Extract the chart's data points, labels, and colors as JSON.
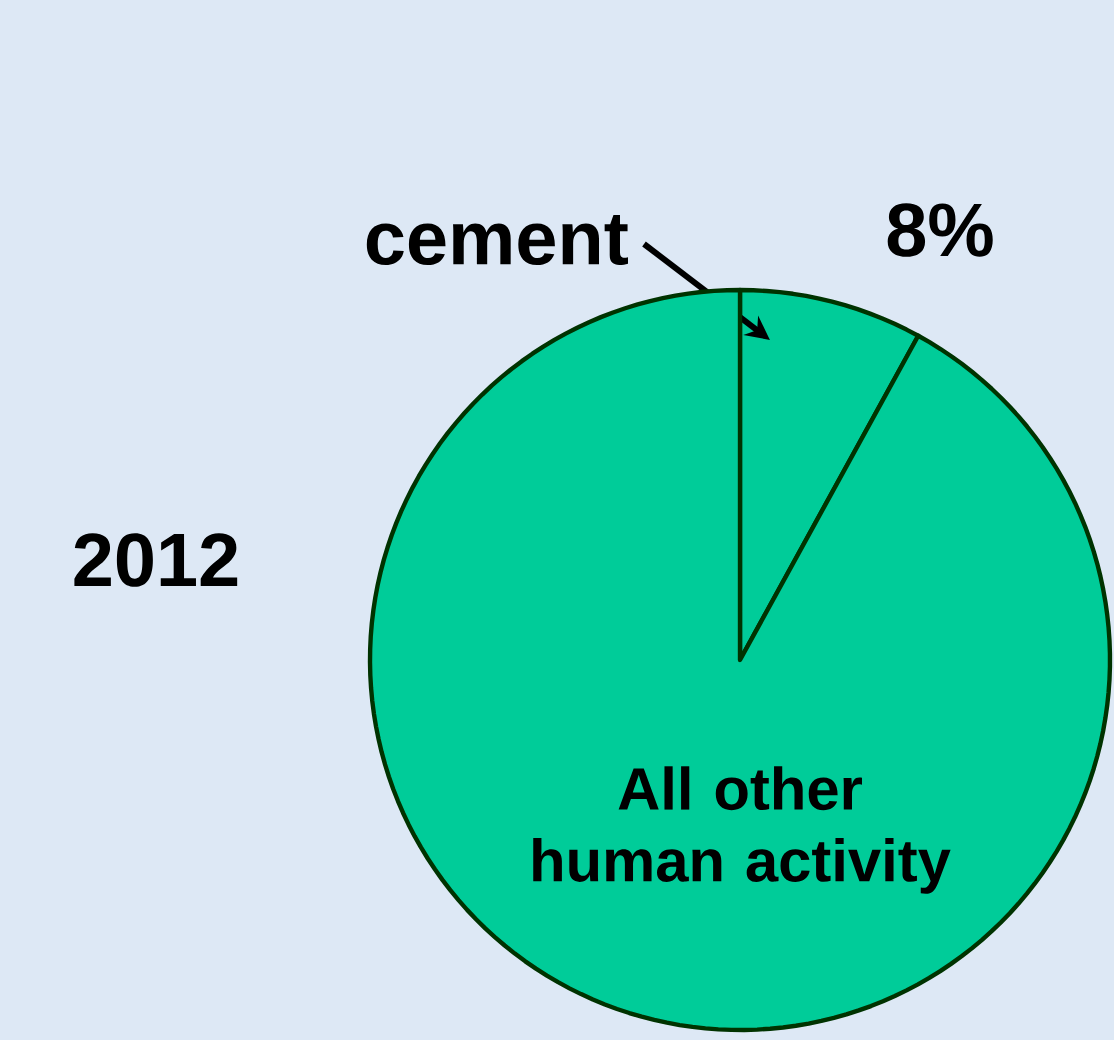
{
  "chart_data": {
    "type": "pie",
    "title": "2012",
    "categories": [
      "cement",
      "All other human activity"
    ],
    "values": [
      8,
      92
    ],
    "colors": [
      "#00cc99",
      "#00cc99"
    ],
    "value_labels": [
      "8%",
      null
    ]
  }
}
